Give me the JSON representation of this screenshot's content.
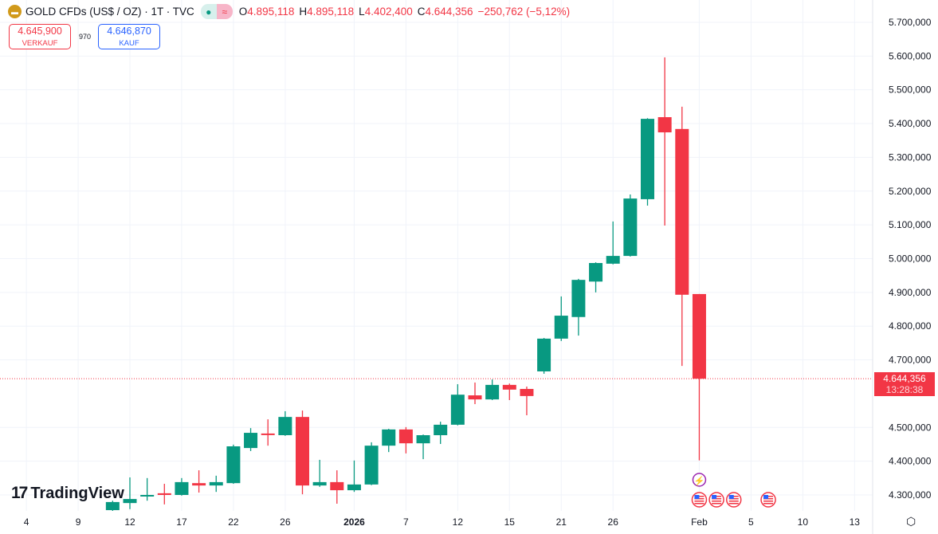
{
  "header": {
    "symbol_title": "GOLD CFDs (US$ / OZ) · 1T · TVC",
    "open_label": "O",
    "open": "4.895,118",
    "high_label": "H",
    "high": "4.895,118",
    "low_label": "L",
    "low": "4.402,400",
    "close_label": "C",
    "close": "4.644,356",
    "change": "−250,762 (−5,12%)",
    "status_icons": [
      "market-open-dot-icon",
      "delayed-data-icon"
    ]
  },
  "trade": {
    "sell_price": "4.645,900",
    "sell_label": "VERKAUF",
    "spread": "970",
    "buy_price": "4.646,870",
    "buy_label": "KAUF"
  },
  "logo": "TradingView",
  "current_price": {
    "price": "4.644,356",
    "countdown": "13:28:38",
    "color": "#f23645"
  },
  "colors": {
    "up": "#089981",
    "down": "#f23645"
  },
  "chart_data": {
    "type": "candlestick",
    "title": "GOLD CFDs (US$ / OZ) · 1T · TVC",
    "ylim": [
      4250,
      5740
    ],
    "y_ticks": [
      {
        "v": 5700,
        "l": "5.700,000"
      },
      {
        "v": 5600,
        "l": "5.600,000"
      },
      {
        "v": 5500,
        "l": "5.500,000"
      },
      {
        "v": 5400,
        "l": "5.400,000"
      },
      {
        "v": 5300,
        "l": "5.300,000"
      },
      {
        "v": 5200,
        "l": "5.200,000"
      },
      {
        "v": 5100,
        "l": "5.100,000"
      },
      {
        "v": 5000,
        "l": "5.000,000"
      },
      {
        "v": 4900,
        "l": "4.900,000"
      },
      {
        "v": 4800,
        "l": "4.800,000"
      },
      {
        "v": 4700,
        "l": "4.700,000"
      },
      {
        "v": 4500,
        "l": "4.500,000"
      },
      {
        "v": 4400,
        "l": "4.400,000"
      },
      {
        "v": 4300,
        "l": "4.300,000"
      }
    ],
    "x_ticks": [
      {
        "i": -4,
        "l": "4"
      },
      {
        "i": -1,
        "l": "9"
      },
      {
        "i": 2,
        "l": "12"
      },
      {
        "i": 5,
        "l": "17"
      },
      {
        "i": 8,
        "l": "22"
      },
      {
        "i": 11,
        "l": "26"
      },
      {
        "i": 15,
        "l": "2026"
      },
      {
        "i": 18,
        "l": "7"
      },
      {
        "i": 21,
        "l": "12"
      },
      {
        "i": 24,
        "l": "15"
      },
      {
        "i": 27,
        "l": "21"
      },
      {
        "i": 30,
        "l": "26"
      },
      {
        "i": 35,
        "l": "Feb"
      },
      {
        "i": 38,
        "l": "5"
      },
      {
        "i": 41,
        "l": "10"
      },
      {
        "i": 44,
        "l": "13"
      }
    ],
    "ohlc": [
      [
        4255,
        4283,
        4240,
        4279
      ],
      [
        4276,
        4352,
        4258,
        4288
      ],
      [
        4298,
        4350,
        4283,
        4300
      ],
      [
        4305,
        4333,
        4272,
        4300
      ],
      [
        4300,
        4350,
        4298,
        4338
      ],
      [
        4335,
        4373,
        4307,
        4328
      ],
      [
        4328,
        4357,
        4309,
        4338
      ],
      [
        4335,
        4449,
        4333,
        4444
      ],
      [
        4439,
        4498,
        4430,
        4484
      ],
      [
        4482,
        4524,
        4446,
        4480
      ],
      [
        4477,
        4548,
        4475,
        4531
      ],
      [
        4531,
        4550,
        4302,
        4328
      ],
      [
        4328,
        4404,
        4324,
        4338
      ],
      [
        4338,
        4373,
        4274,
        4314
      ],
      [
        4314,
        4402,
        4309,
        4331
      ],
      [
        4331,
        4456,
        4329,
        4446
      ],
      [
        4446,
        4496,
        4427,
        4494
      ],
      [
        4494,
        4501,
        4423,
        4453
      ],
      [
        4453,
        4479,
        4406,
        4477
      ],
      [
        4477,
        4517,
        4451,
        4508
      ],
      [
        4508,
        4628,
        4506,
        4597
      ],
      [
        4595,
        4633,
        4569,
        4583
      ],
      [
        4583,
        4642,
        4581,
        4626
      ],
      [
        4626,
        4630,
        4581,
        4612
      ],
      [
        4614,
        4621,
        4536,
        4593
      ],
      [
        4666,
        4765,
        4659,
        4763
      ],
      [
        4763,
        4888,
        4756,
        4831
      ],
      [
        4827,
        4940,
        4772,
        4937
      ],
      [
        4932,
        4989,
        4900,
        4987
      ],
      [
        4985,
        5110,
        4983,
        5008
      ],
      [
        5008,
        5190,
        5006,
        5178
      ],
      [
        5176,
        5416,
        5157,
        5414
      ],
      [
        5419,
        5596,
        5098,
        5374
      ],
      [
        5384,
        5450,
        4682,
        4893
      ],
      [
        4895.118,
        4895.118,
        4402.4,
        4644.356
      ]
    ],
    "first_candle_index": 1,
    "last_price": 4644.356,
    "events": [
      {
        "type": "lightning-icon",
        "i": 35
      },
      {
        "type": "us-flag-icon",
        "i": 35
      },
      {
        "type": "us-flag-icon",
        "i": 36
      },
      {
        "type": "us-flag-icon",
        "i": 37
      },
      {
        "type": "us-flag-icon",
        "i": 39
      }
    ]
  }
}
